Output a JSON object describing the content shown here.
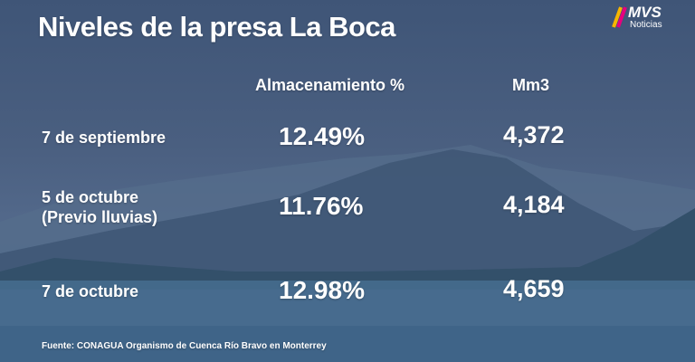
{
  "header": {
    "title": "Niveles de la presa La Boca",
    "logo": {
      "brand": "MVS",
      "subtitle": "Noticias"
    }
  },
  "table": {
    "columns": [
      "Almacenamiento %",
      "Mm3"
    ],
    "rows": [
      {
        "date": [
          "7 de septiembre"
        ],
        "storage": "12.49%",
        "volume": "4,372"
      },
      {
        "date": [
          "5 de octubre",
          "(Previo lluvias)"
        ],
        "storage": "11.76%",
        "volume": "4,184"
      },
      {
        "date": [
          "7 de octubre"
        ],
        "storage": "12.98%",
        "volume": "4,659"
      }
    ]
  },
  "footer": {
    "source": "Fuente: CONAGUA Organismo de Cuenca Río Bravo en Monterrey"
  }
}
